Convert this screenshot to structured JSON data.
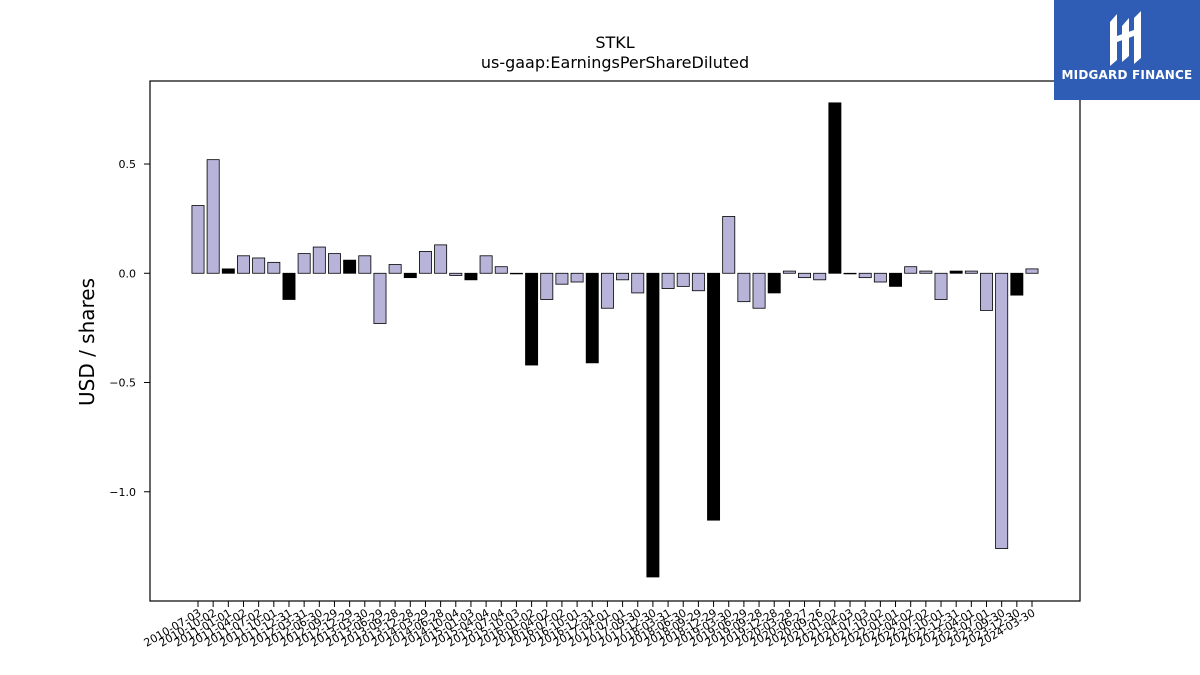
{
  "brand": {
    "name": "MIDGARD FINANCE",
    "bg_color": "#2f5db5"
  },
  "chart_data": {
    "type": "bar",
    "title": "STKL",
    "subtitle": "us-gaap:EarningsPerShareDiluted",
    "ylabel": "USD / shares",
    "xlabel": "",
    "ylim": [
      -1.5,
      0.88
    ],
    "yticks": [
      0.5,
      0.0,
      -0.5,
      -1.0
    ],
    "ytick_labels": [
      "0.5",
      "0.0",
      "−0.5",
      "−1.0"
    ],
    "grid": false,
    "colors": {
      "quarter": "#b8b3d9",
      "annual": "#000000",
      "edge": "#000000"
    },
    "categories": [
      "2010-07-03",
      "2010-10-02",
      "2011-01-01",
      "2011-04-02",
      "2011-07-02",
      "2011-10-01",
      "2011-12-31",
      "2012-03-31",
      "2012-06-30",
      "2012-09-29",
      "2012-12-29",
      "2013-03-30",
      "2013-06-29",
      "2013-09-28",
      "2013-12-28",
      "2014-03-29",
      "2014-06-28",
      "2014-10-04",
      "2015-01-03",
      "2015-04-04",
      "2015-07-04",
      "2015-10-03",
      "2016-01-02",
      "2016-04-02",
      "2016-07-02",
      "2016-10-01",
      "2016-12-31",
      "2017-04-01",
      "2017-07-01",
      "2017-09-30",
      "2017-12-30",
      "2018-03-31",
      "2018-06-30",
      "2018-09-29",
      "2018-12-29",
      "2019-03-30",
      "2019-06-29",
      "2019-09-28",
      "2019-12-28",
      "2020-03-28",
      "2020-06-27",
      "2020-09-26",
      "2021-01-02",
      "2021-04-03",
      "2021-07-03",
      "2021-10-02",
      "2022-01-01",
      "2022-04-02",
      "2022-07-02",
      "2022-10-01",
      "2022-12-31",
      "2023-04-01",
      "2023-07-01",
      "2023-09-30",
      "2023-12-30",
      "2024-03-30"
    ],
    "tick_labels": [
      "2010-07-03",
      "2010-10-02",
      "2011-01-01",
      "2011-04-02",
      "2011-07-02",
      "2011-10-01",
      "2011-12-31",
      "2012-03-31",
      "2012-06-30",
      "2012-09-29",
      "2012-12-29",
      "2013-03-30",
      "2013-06-29",
      "2013-09-28",
      "2013-12-28",
      "2014-03-29",
      "2014-06-28",
      "2014-10-04",
      "2015-01-03",
      "2015-04-04",
      "2015-07-04",
      "2015-10-03",
      "2016-01-02",
      "2016-04-02",
      "2016-07-02",
      "2016-10-01",
      "2016-12-31",
      "2017-04-01",
      "2017-07-01",
      "2017-09-30",
      "2017-12-30",
      "2018-03-31",
      "2018-06-30",
      "2018-09-29",
      "2018-12-29",
      "2019-03-30",
      "2019-06-29",
      "2019-09-28",
      "2019-12-28",
      "2020-03-28",
      "2020-06-27",
      "2020-09-26",
      "2021-01-02",
      "2021-04-03",
      "2021-07-03",
      "2021-10-02",
      "2022-01-01",
      "2022-04-02",
      "2022-07-02",
      "2022-10-01",
      "2022-12-31",
      "2023-04-01",
      "2023-07-01",
      "2023-09-30",
      "2023-12-30",
      "2024-03-30"
    ],
    "values": [
      0.31,
      0.52,
      0.02,
      0.08,
      0.07,
      0.05,
      -0.12,
      0.09,
      0.12,
      0.09,
      0.06,
      0.08,
      -0.23,
      0.04,
      -0.02,
      0.1,
      0.13,
      -0.01,
      -0.03,
      0.08,
      0.03,
      0.0,
      -0.42,
      -0.12,
      -0.05,
      -0.04,
      -0.41,
      -0.16,
      -0.03,
      -0.09,
      -1.39,
      -0.07,
      -0.06,
      -0.08,
      -1.13,
      0.26,
      -0.13,
      -0.16,
      -0.09,
      0.01,
      -0.02,
      -0.03,
      0.78,
      0.0,
      -0.02,
      -0.04,
      -0.06,
      0.03,
      0.01,
      -0.12,
      0.01,
      0.01,
      -0.17,
      -1.26,
      -0.1,
      0.02
    ],
    "annual": [
      false,
      false,
      true,
      false,
      false,
      false,
      true,
      false,
      false,
      false,
      true,
      false,
      false,
      false,
      true,
      false,
      false,
      false,
      true,
      false,
      false,
      false,
      true,
      false,
      false,
      false,
      true,
      false,
      false,
      false,
      true,
      false,
      false,
      false,
      true,
      false,
      false,
      false,
      true,
      false,
      false,
      false,
      true,
      false,
      false,
      false,
      true,
      false,
      false,
      false,
      true,
      false,
      false,
      false,
      true,
      false
    ]
  }
}
